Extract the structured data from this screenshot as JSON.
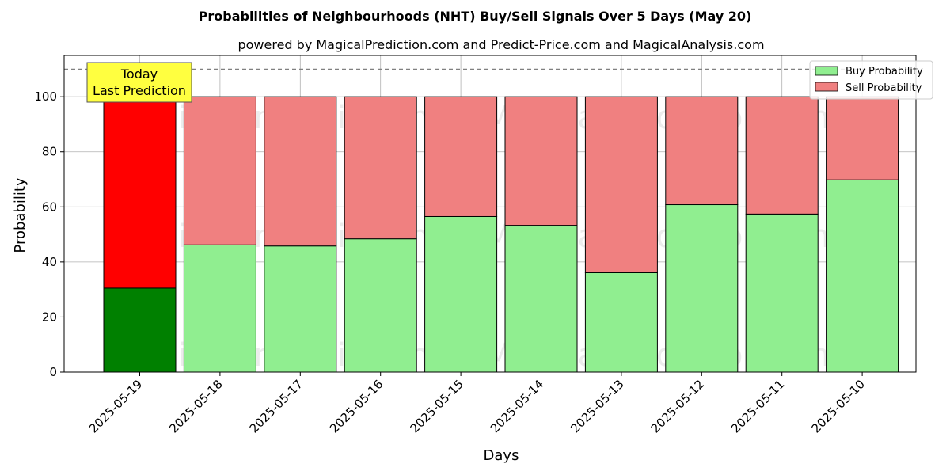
{
  "chart_data": {
    "type": "bar",
    "stacked": true,
    "title": "Probabilities of Neighbourhoods (NHT) Buy/Sell Signals Over 5 Days (May 20)",
    "subtitle": "powered by MagicalPrediction.com and Predict-Price.com and MagicalAnalysis.com",
    "xlabel": "Days",
    "ylabel": "Probability",
    "ylim": [
      0,
      115
    ],
    "yticks": [
      0,
      20,
      40,
      60,
      80,
      100
    ],
    "grid": true,
    "reference_line": 110,
    "categories": [
      "2025-05-19",
      "2025-05-18",
      "2025-05-17",
      "2025-05-16",
      "2025-05-15",
      "2025-05-14",
      "2025-05-13",
      "2025-05-12",
      "2025-05-11",
      "2025-05-10"
    ],
    "series": [
      {
        "name": "Buy Probability",
        "values": [
          30.5,
          46.2,
          45.8,
          48.4,
          56.5,
          53.3,
          36.1,
          60.8,
          57.4,
          69.8
        ]
      },
      {
        "name": "Sell Probability",
        "values": [
          69.5,
          53.8,
          54.2,
          51.6,
          43.5,
          46.7,
          63.9,
          39.2,
          42.6,
          30.2
        ]
      }
    ],
    "legend": {
      "position": "top-right"
    },
    "colors": {
      "buy": "#90ee90",
      "sell": "#f08080",
      "today_buy": "#008000",
      "today_sell": "#ff0000",
      "annotation_bg": "#ffff40"
    },
    "annotation": {
      "lines": [
        "Today",
        "Last Prediction"
      ]
    },
    "watermarks": [
      "MagicalAnalysis.com",
      "MagicalPrediction.com"
    ]
  }
}
